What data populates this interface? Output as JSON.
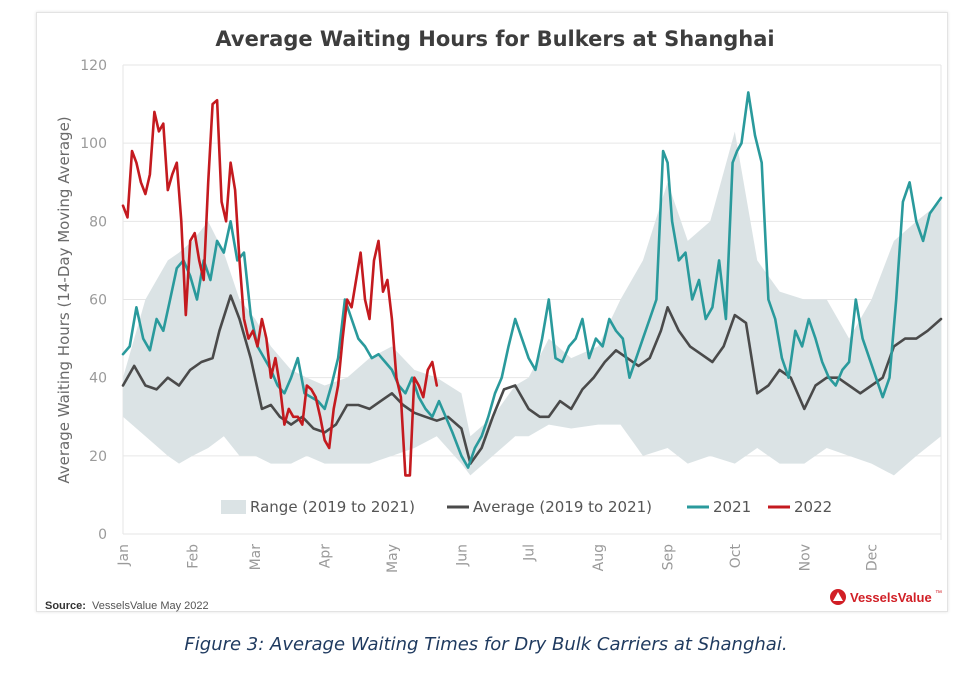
{
  "caption": "Figure 3: Average Waiting Times for Dry Bulk Carriers at Shanghai.",
  "source": {
    "label": "Source:",
    "text": "VesselsValue May 2022"
  },
  "brand": {
    "name": "VesselsValue",
    "mark": "™",
    "color": "#d11f26"
  },
  "colors": {
    "range": "#dbe3e5",
    "average": "#4a4a4a",
    "y2021": "#2a9a9c",
    "y2022": "#c41a1f",
    "grid": "#e6e6e6"
  },
  "chart_data": {
    "type": "line",
    "title": "Average Waiting Hours for Bulkers at Shanghai",
    "xlabel": "",
    "ylabel": "Average Waiting Hours (14-Day Moving Average)",
    "ylim": [
      0,
      120
    ],
    "yticks": [
      0,
      20,
      40,
      60,
      80,
      100,
      120
    ],
    "xlim": [
      0,
      365
    ],
    "x_unit": "day of year",
    "month_ticks": [
      {
        "label": "Jan",
        "day": 0
      },
      {
        "label": "Feb",
        "day": 31
      },
      {
        "label": "Mar",
        "day": 59
      },
      {
        "label": "Apr",
        "day": 90
      },
      {
        "label": "May",
        "day": 120
      },
      {
        "label": "Jun",
        "day": 151
      },
      {
        "label": "Jul",
        "day": 181
      },
      {
        "label": "Aug",
        "day": 212
      },
      {
        "label": "Sep",
        "day": 243
      },
      {
        "label": "Oct",
        "day": 273
      },
      {
        "label": "Nov",
        "day": 304
      },
      {
        "label": "Dec",
        "day": 334
      }
    ],
    "grid": true,
    "legend_position": "bottom",
    "legend": [
      {
        "label": "Range (2019 to 2021)",
        "kind": "band"
      },
      {
        "label": "Average (2019 to 2021)",
        "kind": "line",
        "series": "average"
      },
      {
        "label": "2021",
        "kind": "line",
        "series": "y2021"
      },
      {
        "label": "2022",
        "kind": "line",
        "series": "y2022"
      }
    ],
    "range_band": {
      "name": "Range (2019 to 2021)",
      "x": [
        0,
        10,
        20,
        25,
        31,
        38,
        45,
        52,
        59,
        66,
        75,
        82,
        90,
        100,
        110,
        120,
        130,
        140,
        151,
        155,
        165,
        175,
        181,
        190,
        200,
        212,
        222,
        232,
        243,
        252,
        262,
        273,
        283,
        293,
        304,
        314,
        324,
        334,
        344,
        354,
        365
      ],
      "upper": [
        40,
        60,
        70,
        72,
        75,
        80,
        72,
        60,
        55,
        48,
        42,
        40,
        38,
        40,
        45,
        48,
        42,
        40,
        36,
        25,
        30,
        38,
        40,
        50,
        45,
        48,
        60,
        70,
        90,
        75,
        80,
        103,
        70,
        62,
        60,
        60,
        50,
        60,
        75,
        80,
        85
      ],
      "lower": [
        30,
        25,
        20,
        18,
        20,
        22,
        25,
        20,
        20,
        18,
        18,
        20,
        18,
        18,
        18,
        20,
        22,
        25,
        18,
        15,
        20,
        25,
        25,
        28,
        27,
        28,
        28,
        20,
        22,
        18,
        20,
        18,
        22,
        18,
        18,
        22,
        20,
        18,
        15,
        20,
        25
      ]
    },
    "series": [
      {
        "name": "Average (2019 to 2021)",
        "key": "average",
        "x": [
          0,
          5,
          10,
          15,
          20,
          25,
          30,
          35,
          40,
          43,
          48,
          52,
          57,
          62,
          66,
          70,
          75,
          80,
          85,
          90,
          95,
          100,
          105,
          110,
          115,
          120,
          125,
          130,
          135,
          140,
          145,
          151,
          155,
          160,
          165,
          170,
          175,
          181,
          186,
          190,
          195,
          200,
          205,
          210,
          215,
          220,
          225,
          230,
          235,
          240,
          243,
          248,
          253,
          258,
          263,
          268,
          273,
          278,
          283,
          288,
          293,
          298,
          304,
          309,
          314,
          319,
          324,
          329,
          334,
          339,
          344,
          349,
          354,
          359,
          365
        ],
        "y": [
          38,
          43,
          38,
          37,
          40,
          38,
          42,
          44,
          45,
          52,
          61,
          55,
          45,
          32,
          33,
          30,
          28,
          30,
          27,
          26,
          28,
          33,
          33,
          32,
          34,
          36,
          33,
          31,
          30,
          29,
          30,
          27,
          18,
          22,
          30,
          37,
          38,
          32,
          30,
          30,
          34,
          32,
          37,
          40,
          44,
          47,
          45,
          43,
          45,
          52,
          58,
          52,
          48,
          46,
          44,
          48,
          56,
          54,
          36,
          38,
          42,
          40,
          32,
          38,
          40,
          40,
          38,
          36,
          38,
          40,
          48,
          50,
          50,
          52,
          55
        ]
      },
      {
        "name": "2021",
        "key": "y2021",
        "x": [
          0,
          3,
          6,
          9,
          12,
          15,
          18,
          21,
          24,
          27,
          30,
          33,
          36,
          39,
          42,
          45,
          48,
          51,
          54,
          57,
          60,
          63,
          66,
          69,
          72,
          75,
          78,
          81,
          84,
          87,
          90,
          93,
          96,
          99,
          102,
          105,
          108,
          111,
          114,
          117,
          120,
          123,
          126,
          129,
          132,
          135,
          138,
          141,
          144,
          147,
          151,
          154,
          157,
          160,
          163,
          166,
          169,
          172,
          175,
          178,
          181,
          184,
          187,
          190,
          193,
          196,
          199,
          202,
          205,
          208,
          211,
          214,
          217,
          220,
          223,
          226,
          229,
          232,
          235,
          238,
          241,
          243,
          245,
          248,
          251,
          254,
          257,
          260,
          263,
          266,
          269,
          272,
          274,
          276,
          279,
          282,
          285,
          288,
          291,
          294,
          297,
          300,
          303,
          306,
          309,
          312,
          315,
          318,
          321,
          324,
          327,
          330,
          333,
          336,
          339,
          342,
          345,
          348,
          351,
          354,
          357,
          360,
          365
        ],
        "y": [
          46,
          48,
          58,
          50,
          47,
          55,
          52,
          60,
          68,
          70,
          66,
          60,
          70,
          65,
          75,
          72,
          80,
          70,
          72,
          56,
          48,
          45,
          42,
          38,
          36,
          40,
          45,
          36,
          35,
          34,
          32,
          38,
          45,
          60,
          55,
          50,
          48,
          45,
          46,
          44,
          42,
          38,
          36,
          40,
          35,
          32,
          30,
          34,
          30,
          26,
          20,
          17,
          22,
          25,
          30,
          36,
          40,
          48,
          55,
          50,
          45,
          42,
          50,
          60,
          45,
          44,
          48,
          50,
          55,
          45,
          50,
          48,
          55,
          52,
          50,
          40,
          45,
          50,
          55,
          60,
          98,
          95,
          80,
          70,
          72,
          60,
          65,
          55,
          58,
          70,
          55,
          95,
          98,
          100,
          113,
          102,
          95,
          60,
          55,
          45,
          40,
          52,
          48,
          55,
          50,
          44,
          40,
          38,
          42,
          44,
          60,
          50,
          45,
          40,
          35,
          40,
          60,
          85,
          90,
          80,
          75,
          82,
          86
        ]
      },
      {
        "name": "2022",
        "key": "y2022",
        "x": [
          0,
          2,
          4,
          6,
          8,
          10,
          12,
          14,
          16,
          18,
          20,
          22,
          24,
          26,
          28,
          30,
          32,
          34,
          36,
          38,
          40,
          42,
          44,
          46,
          48,
          50,
          52,
          54,
          56,
          58,
          60,
          62,
          64,
          66,
          68,
          70,
          72,
          74,
          76,
          78,
          80,
          82,
          84,
          86,
          88,
          90,
          92,
          94,
          96,
          98,
          100,
          102,
          104,
          106,
          108,
          110,
          112,
          114,
          116,
          118,
          120,
          122,
          124,
          126,
          128,
          130,
          132,
          134,
          136,
          138,
          140
        ],
        "y": [
          84,
          81,
          98,
          95,
          90,
          87,
          92,
          108,
          103,
          105,
          88,
          92,
          95,
          80,
          56,
          75,
          77,
          70,
          65,
          90,
          110,
          111,
          85,
          80,
          95,
          88,
          70,
          55,
          50,
          52,
          48,
          55,
          50,
          40,
          45,
          38,
          28,
          32,
          30,
          30,
          28,
          38,
          37,
          35,
          30,
          24,
          22,
          32,
          38,
          50,
          60,
          58,
          65,
          72,
          60,
          55,
          70,
          75,
          62,
          65,
          55,
          40,
          35,
          15,
          15,
          40,
          38,
          35,
          42,
          44,
          38
        ]
      }
    ]
  }
}
